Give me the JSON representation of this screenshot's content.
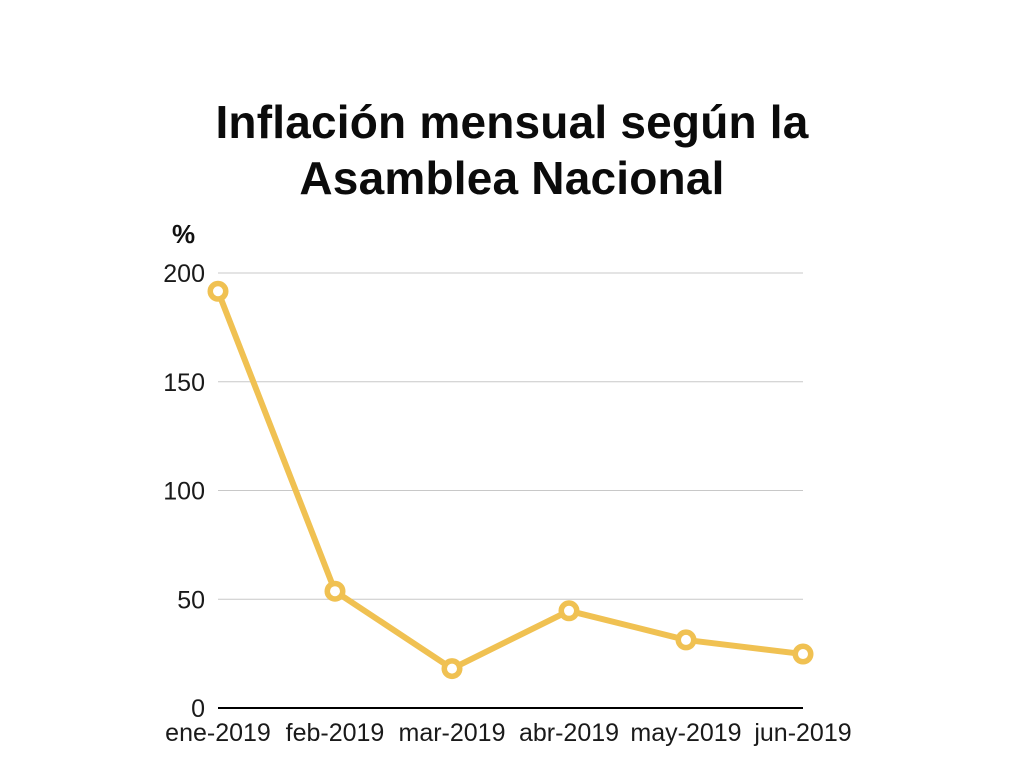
{
  "page": {
    "background_color": "#ffffff"
  },
  "header": {
    "title": "Inflación mensual según la Asamblea Nacional"
  },
  "chart_data": {
    "type": "line",
    "title": "Inflación mensual según la Asamblea Nacional",
    "unit_label": "%",
    "categories": [
      "ene-2019",
      "feb-2019",
      "mar-2019",
      "abr-2019",
      "may-2019",
      "jun-2019"
    ],
    "series": [
      {
        "name": "Inflación mensual según la Asamblea Nacional",
        "values": [
          191.6,
          53.7,
          18.1,
          44.7,
          31.3,
          24.8
        ]
      }
    ],
    "ylabel": "%",
    "xlabel": "",
    "ylim": [
      0,
      200
    ],
    "yticks": [
      0,
      50,
      100,
      150,
      200
    ],
    "grid": true,
    "legend": "none",
    "colors": {
      "line": "#F0C152",
      "marker_ring": "#F0C152",
      "marker_fill": "#ffffff",
      "gridline": "#c8c8c8",
      "zero_axis": "#000000",
      "tick_text": "#1a1a1a",
      "title_text": "#0b0b0b"
    },
    "marker_style": "open-circle"
  }
}
